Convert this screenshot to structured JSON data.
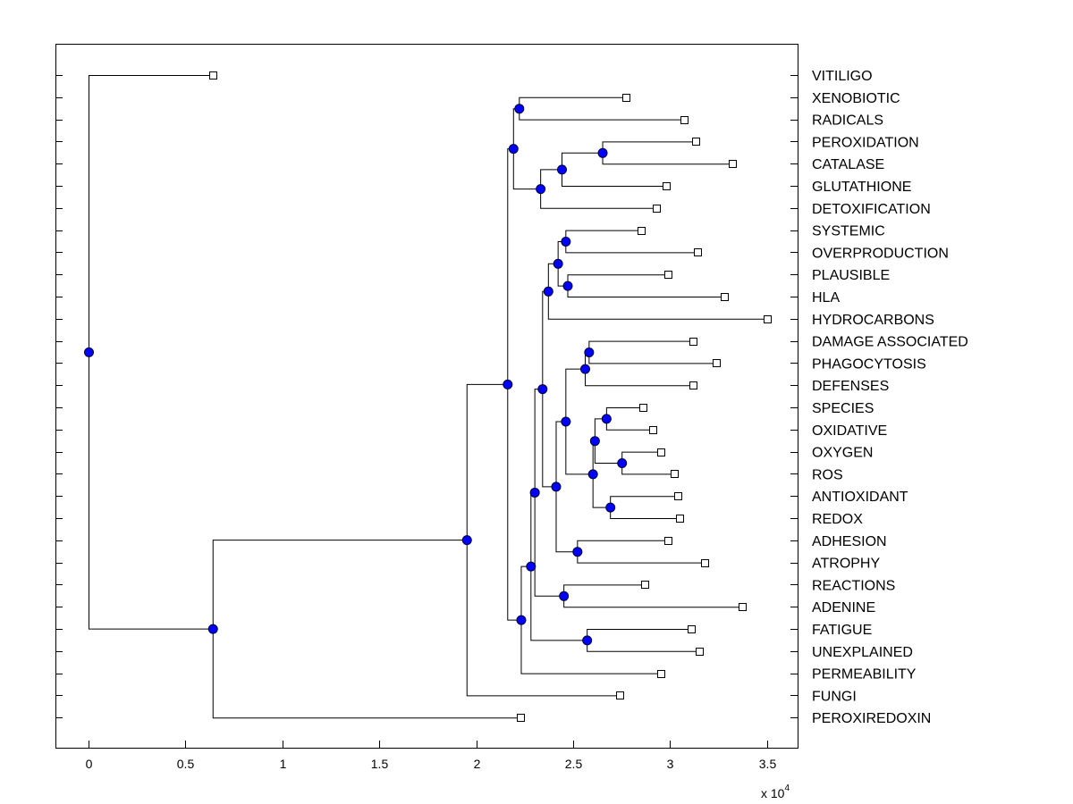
{
  "colors": {
    "node": "#0000ff",
    "line": "#000000",
    "background": "#ffffff"
  },
  "chart_data": {
    "type": "dendrogram",
    "x_axis": {
      "ticks": [
        0,
        0.5,
        1,
        1.5,
        2,
        2.5,
        3,
        3.5
      ],
      "tick_labels": [
        "0",
        "0.5",
        "1",
        "1.5",
        "2",
        "2.5",
        "3",
        "3.5"
      ],
      "range": [
        -0.17,
        3.66
      ],
      "multiplier_base": "x 10",
      "multiplier_exp": "4"
    },
    "leaves": [
      {
        "label": "VITILIGO",
        "x": 0.64
      },
      {
        "label": "XENOBIOTIC",
        "x": 2.77
      },
      {
        "label": "RADICALS",
        "x": 3.07
      },
      {
        "label": "PEROXIDATION",
        "x": 3.13
      },
      {
        "label": "CATALASE",
        "x": 3.32
      },
      {
        "label": "GLUTATHIONE",
        "x": 2.98
      },
      {
        "label": "DETOXIFICATION",
        "x": 2.93
      },
      {
        "label": "SYSTEMIC",
        "x": 2.85
      },
      {
        "label": "OVERPRODUCTION",
        "x": 3.14
      },
      {
        "label": "PLAUSIBLE",
        "x": 2.99
      },
      {
        "label": "HLA",
        "x": 3.28
      },
      {
        "label": "HYDROCARBONS",
        "x": 3.5
      },
      {
        "label": "DAMAGE ASSOCIATED",
        "x": 3.12
      },
      {
        "label": "PHAGOCYTOSIS",
        "x": 3.24
      },
      {
        "label": "DEFENSES",
        "x": 3.12
      },
      {
        "label": "SPECIES",
        "x": 2.86
      },
      {
        "label": "OXIDATIVE",
        "x": 2.91
      },
      {
        "label": "OXYGEN",
        "x": 2.95
      },
      {
        "label": "ROS",
        "x": 3.02
      },
      {
        "label": "ANTIOXIDANT",
        "x": 3.04
      },
      {
        "label": "REDOX",
        "x": 3.05
      },
      {
        "label": "ADHESION",
        "x": 2.99
      },
      {
        "label": "ATROPHY",
        "x": 3.18
      },
      {
        "label": "REACTIONS",
        "x": 2.87
      },
      {
        "label": "ADENINE",
        "x": 3.37
      },
      {
        "label": "FATIGUE",
        "x": 3.11
      },
      {
        "label": "UNEXPLAINED",
        "x": 3.15
      },
      {
        "label": "PERMEABILITY",
        "x": 2.95
      },
      {
        "label": "FUNGI",
        "x": 2.74
      },
      {
        "label": "PEROXIREDOXIN",
        "x": 2.23
      }
    ],
    "merges": [
      {
        "id": "n1",
        "x": 2.22,
        "children": [
          "XENOBIOTIC",
          "RADICALS"
        ]
      },
      {
        "id": "n2",
        "x": 2.65,
        "children": [
          "PEROXIDATION",
          "CATALASE"
        ]
      },
      {
        "id": "n3",
        "x": 2.44,
        "children": [
          "n2",
          "GLUTATHIONE"
        ]
      },
      {
        "id": "n4",
        "x": 2.33,
        "children": [
          "n3",
          "DETOXIFICATION"
        ]
      },
      {
        "id": "n5",
        "x": 2.19,
        "children": [
          "n1",
          "n4"
        ]
      },
      {
        "id": "n6",
        "x": 2.46,
        "children": [
          "SYSTEMIC",
          "OVERPRODUCTION"
        ]
      },
      {
        "id": "n7",
        "x": 2.47,
        "children": [
          "PLAUSIBLE",
          "HLA"
        ]
      },
      {
        "id": "n8",
        "x": 2.42,
        "children": [
          "n6",
          "n7"
        ]
      },
      {
        "id": "n9",
        "x": 2.37,
        "children": [
          "n8",
          "HYDROCARBONS"
        ]
      },
      {
        "id": "n10",
        "x": 2.58,
        "children": [
          "DAMAGE ASSOCIATED",
          "PHAGOCYTOSIS"
        ]
      },
      {
        "id": "n11",
        "x": 2.56,
        "children": [
          "n10",
          "DEFENSES"
        ]
      },
      {
        "id": "n12",
        "x": 2.67,
        "children": [
          "SPECIES",
          "OXIDATIVE"
        ]
      },
      {
        "id": "n13",
        "x": 2.75,
        "children": [
          "OXYGEN",
          "ROS"
        ]
      },
      {
        "id": "n14",
        "x": 2.61,
        "children": [
          "n12",
          "n13"
        ]
      },
      {
        "id": "n15",
        "x": 2.69,
        "children": [
          "ANTIOXIDANT",
          "REDOX"
        ]
      },
      {
        "id": "n16",
        "x": 2.6,
        "children": [
          "n14",
          "n15"
        ]
      },
      {
        "id": "n17",
        "x": 2.46,
        "children": [
          "n11",
          "n16"
        ]
      },
      {
        "id": "n18",
        "x": 2.52,
        "children": [
          "ADHESION",
          "ATROPHY"
        ]
      },
      {
        "id": "n19",
        "x": 2.41,
        "children": [
          "n17",
          "n18"
        ]
      },
      {
        "id": "n20",
        "x": 2.34,
        "children": [
          "n9",
          "n19"
        ]
      },
      {
        "id": "n21",
        "x": 2.45,
        "children": [
          "REACTIONS",
          "ADENINE"
        ]
      },
      {
        "id": "n22",
        "x": 2.3,
        "children": [
          "n20",
          "n21"
        ]
      },
      {
        "id": "n23",
        "x": 2.57,
        "children": [
          "FATIGUE",
          "UNEXPLAINED"
        ]
      },
      {
        "id": "n24",
        "x": 2.28,
        "children": [
          "n22",
          "n23"
        ]
      },
      {
        "id": "n25",
        "x": 2.23,
        "children": [
          "n24",
          "PERMEABILITY"
        ]
      },
      {
        "id": "n26",
        "x": 2.16,
        "children": [
          "n5",
          "n25"
        ]
      },
      {
        "id": "n27",
        "x": 1.95,
        "children": [
          "n26",
          "FUNGI"
        ]
      },
      {
        "id": "n28",
        "x": 0.64,
        "children": [
          "n27",
          "PEROXIREDOXIN"
        ]
      },
      {
        "id": "n29",
        "x": 0.0,
        "children": [
          "VITILIGO",
          "n28"
        ]
      }
    ]
  }
}
